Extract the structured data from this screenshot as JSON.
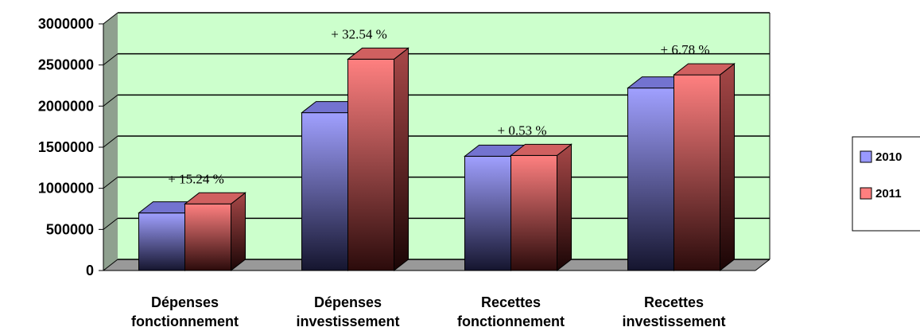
{
  "chart_data": {
    "type": "bar",
    "style": "3d-clustered-column",
    "title": "",
    "xlabel": "",
    "ylabel": "",
    "ylim": [
      0,
      3000000
    ],
    "yticks": [
      0,
      500000,
      1000000,
      1500000,
      2000000,
      2500000,
      3000000
    ],
    "grid": true,
    "legend_position": "right",
    "categories": [
      [
        "Dépenses",
        "fonctionnement"
      ],
      [
        "Dépenses",
        "investissement"
      ],
      [
        "Recettes",
        "fonctionnement"
      ],
      [
        "Recettes",
        "investissement"
      ]
    ],
    "series": [
      {
        "name": "2010",
        "color": "#9999ff",
        "values": [
          700000,
          1920000,
          1390000,
          2220000
        ]
      },
      {
        "name": "2011",
        "color": "#ff7f7f",
        "values": [
          810000,
          2570000,
          1400000,
          2380000
        ]
      }
    ],
    "annotations": [
      "+ 15.24 %",
      "+ 32.54 %",
      "+ 0.53 %",
      "+ 6.78 %"
    ],
    "colors": {
      "wall": "#ccffcc",
      "floor": "#999999",
      "grid": "#000000"
    }
  }
}
